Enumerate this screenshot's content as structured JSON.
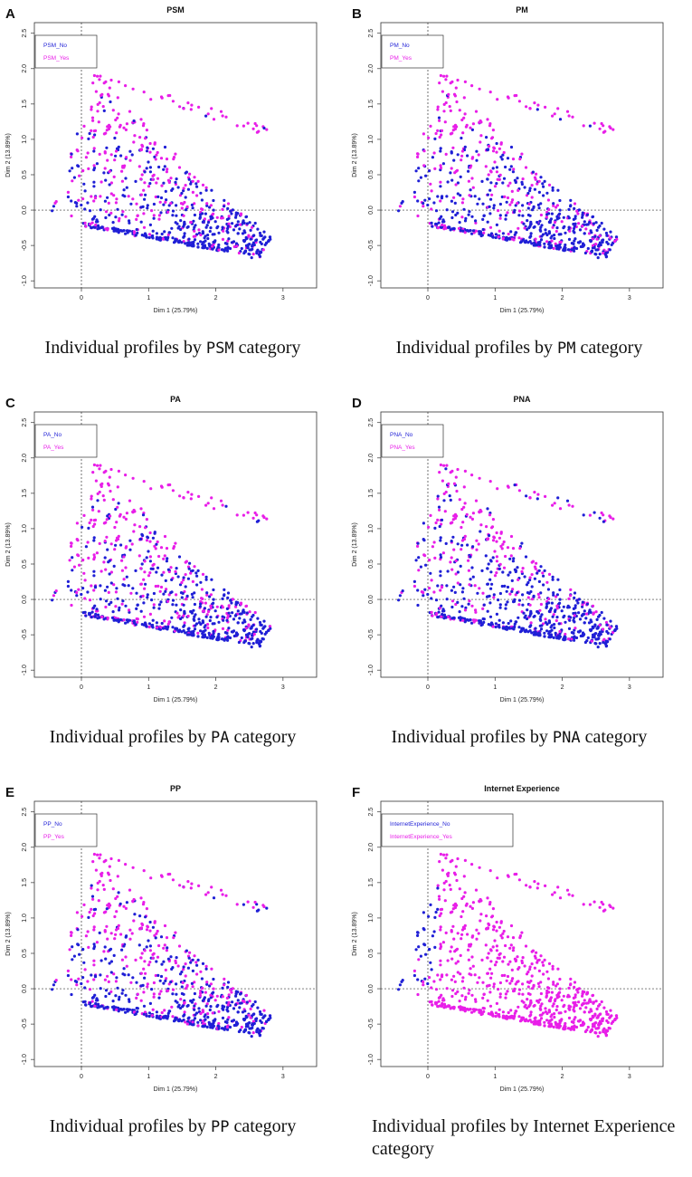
{
  "chart_data": [
    {
      "type": "scatter",
      "letter": "A",
      "title": "PSM",
      "xlabel": "Dim 1 (25.79%)",
      "ylabel": "Dim 2 (13.89%)",
      "xlim": [
        -0.7,
        3.5
      ],
      "ylim": [
        -1.1,
        2.65
      ],
      "xticks": [
        "0",
        "1",
        "2",
        "3"
      ],
      "yticks": [
        "-1.0",
        "-0.5",
        "0.0",
        "0.5",
        "1.0",
        "1.5",
        "2.0",
        "2.5"
      ],
      "legend": [
        "PSM_No",
        "PSM_Yes"
      ],
      "series_colors": [
        "#1f1fd6",
        "#e81ee8"
      ],
      "yes_share": 0.42,
      "caption_pre": "Individual profiles by ",
      "caption_code": "PSM",
      "caption_post": " category"
    },
    {
      "type": "scatter",
      "letter": "B",
      "title": "PM",
      "xlabel": "Dim 1 (25.79%)",
      "ylabel": "Dim 2 (13.89%)",
      "xlim": [
        -0.7,
        3.5
      ],
      "ylim": [
        -1.1,
        2.65
      ],
      "xticks": [
        "0",
        "1",
        "2",
        "3"
      ],
      "yticks": [
        "-1.0",
        "-0.5",
        "0.0",
        "0.5",
        "1.0",
        "1.5",
        "2.0",
        "2.5"
      ],
      "legend": [
        "PM_No",
        "PM_Yes"
      ],
      "series_colors": [
        "#1f1fd6",
        "#e81ee8"
      ],
      "yes_share": 0.4,
      "caption_pre": "Individual profiles by ",
      "caption_code": "PM",
      "caption_post": " category"
    },
    {
      "type": "scatter",
      "letter": "C",
      "title": "PA",
      "xlabel": "Dim 1 (25.79%)",
      "ylabel": "Dim 2 (13.89%)",
      "xlim": [
        -0.7,
        3.5
      ],
      "ylim": [
        -1.1,
        2.65
      ],
      "xticks": [
        "0",
        "1",
        "2",
        "3"
      ],
      "yticks": [
        "-1.0",
        "-0.5",
        "0.0",
        "0.5",
        "1.0",
        "1.5",
        "2.0",
        "2.5"
      ],
      "legend": [
        "PA_No",
        "PA_Yes"
      ],
      "series_colors": [
        "#1f1fd6",
        "#e81ee8"
      ],
      "yes_share": 0.45,
      "caption_pre": "Individual profiles by ",
      "caption_code": "PA",
      "caption_post": " category"
    },
    {
      "type": "scatter",
      "letter": "D",
      "title": "PNA",
      "xlabel": "Dim 1 (25.79%)",
      "ylabel": "Dim 2 (13.89%)",
      "xlim": [
        -0.7,
        3.5
      ],
      "ylim": [
        -1.1,
        2.65
      ],
      "xticks": [
        "0",
        "1",
        "2",
        "3"
      ],
      "yticks": [
        "-1.0",
        "-0.5",
        "0.0",
        "0.5",
        "1.0",
        "1.5",
        "2.0",
        "2.5"
      ],
      "legend": [
        "PNA_No",
        "PNA_Yes"
      ],
      "series_colors": [
        "#1f1fd6",
        "#e81ee8"
      ],
      "yes_share": 0.35,
      "caption_pre": "Individual profiles by ",
      "caption_code": "PNA",
      "caption_post": " category"
    },
    {
      "type": "scatter",
      "letter": "E",
      "title": "PP",
      "xlabel": "Dim 1 (25.79%)",
      "ylabel": "Dim 2 (13.89%)",
      "xlim": [
        -0.7,
        3.5
      ],
      "ylim": [
        -1.1,
        2.65
      ],
      "xticks": [
        "0",
        "1",
        "2",
        "3"
      ],
      "yticks": [
        "-1.0",
        "-0.5",
        "0.0",
        "0.5",
        "1.0",
        "1.5",
        "2.0",
        "2.5"
      ],
      "legend": [
        "PP_No",
        "PP_Yes"
      ],
      "series_colors": [
        "#1f1fd6",
        "#e81ee8"
      ],
      "yes_share": 0.42,
      "caption_pre": "Individual profiles by ",
      "caption_code": "PP",
      "caption_post": " category"
    },
    {
      "type": "scatter",
      "letter": "F",
      "title": "Internet Experience",
      "xlabel": "Dim 1 (25.79%)",
      "ylabel": "Dim 2 (13.89%)",
      "xlim": [
        -0.7,
        3.5
      ],
      "ylim": [
        -1.1,
        2.65
      ],
      "xticks": [
        "0",
        "1",
        "2",
        "3"
      ],
      "yticks": [
        "-1.0",
        "-0.5",
        "0.0",
        "0.5",
        "1.0",
        "1.5",
        "2.0",
        "2.5"
      ],
      "legend": [
        "InternetExperience_No",
        "InternetExperience_Yes"
      ],
      "series_colors": [
        "#1f1fd6",
        "#e81ee8"
      ],
      "yes_share": 0.88,
      "caption_pre": "Individual profiles by Internet Experience",
      "caption_code": "",
      "caption_post": " category"
    }
  ]
}
